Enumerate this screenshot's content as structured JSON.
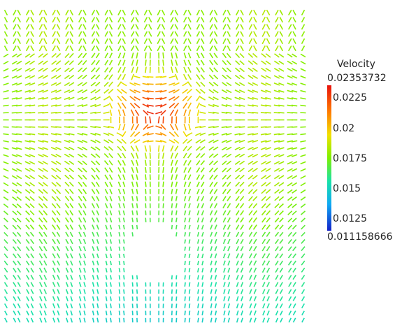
{
  "chart_data": {
    "type": "vector-field",
    "field": "Velocity",
    "color_scale": {
      "title": "Velocity",
      "min": 0.011158666,
      "max": 0.02353732,
      "min_label": "0.011158666",
      "max_label": "0.02353732",
      "ticks": [
        0.0225,
        0.02,
        0.0175,
        0.015,
        0.0125
      ],
      "tick_labels": [
        "0.0225",
        "0.02",
        "0.0175",
        "0.015",
        "0.0125"
      ],
      "colormap": [
        "#1220c8",
        "#10a8f4",
        "#18e2a8",
        "#7cf000",
        "#f2e000",
        "#ff7a00",
        "#e8120c"
      ]
    },
    "grid": false,
    "legend_position": "right"
  }
}
